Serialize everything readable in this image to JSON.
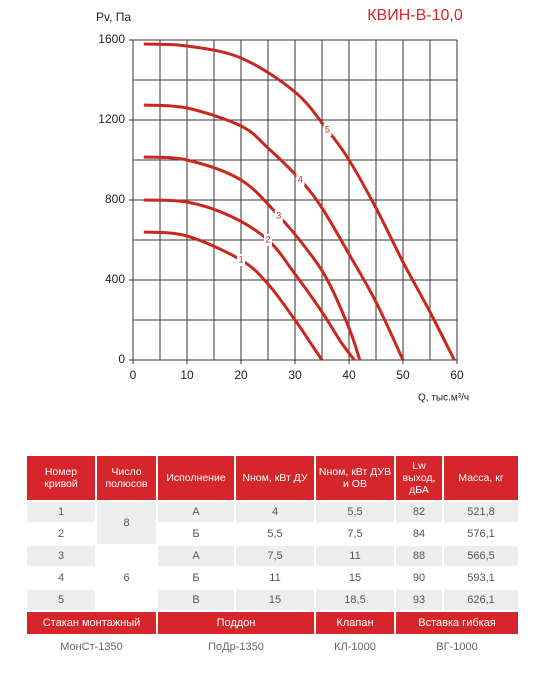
{
  "chart_data": {
    "type": "line",
    "title": "КВИН-В-10,0",
    "y_label": "Pv, Па",
    "x_label": "Q, тыс.м³/ч",
    "xlim": [
      0,
      60
    ],
    "xticks": [
      0,
      10,
      20,
      30,
      40,
      50,
      60
    ],
    "ylim": [
      0,
      1600
    ],
    "yticks": [
      0,
      400,
      800,
      1200,
      1600
    ],
    "grid": true,
    "x_grid_step": 5,
    "y_grid_step": 200,
    "series": [
      {
        "name": "1",
        "color": "#c8281e",
        "x": [
          2,
          10,
          20,
          25,
          30,
          33,
          35
        ],
        "values": [
          640,
          620,
          500,
          380,
          200,
          80,
          0
        ]
      },
      {
        "name": "2",
        "color": "#c8281e",
        "x": [
          2,
          10,
          18,
          25,
          30,
          35,
          38.5,
          41
        ],
        "values": [
          800,
          790,
          720,
          600,
          430,
          240,
          90,
          0
        ]
      },
      {
        "name": "3",
        "color": "#c8281e",
        "x": [
          2,
          10,
          20,
          27,
          32,
          36,
          40,
          42
        ],
        "values": [
          1015,
          1000,
          900,
          720,
          560,
          400,
          160,
          0
        ]
      },
      {
        "name": "4",
        "color": "#c8281e",
        "x": [
          2,
          10,
          20,
          25,
          31,
          35,
          40,
          45,
          50
        ],
        "values": [
          1275,
          1260,
          1170,
          1060,
          900,
          760,
          530,
          290,
          0
        ]
      },
      {
        "name": "5",
        "color": "#c8281e",
        "x": [
          2,
          10,
          20,
          30,
          36,
          40,
          45,
          50,
          55,
          59.5
        ],
        "values": [
          1580,
          1570,
          1510,
          1340,
          1150,
          1000,
          760,
          490,
          240,
          0
        ]
      }
    ]
  },
  "table": {
    "header": [
      "Номер кривой",
      "Число полюсов",
      "Исполнение",
      "Nном, кВт ДУ",
      "Nном, кВт ДУВ и ОВ",
      "Lw выход, дБА",
      "Масса, кг"
    ],
    "rows": [
      [
        "1",
        "8",
        "А",
        "4",
        "5,5",
        "82",
        "521,8"
      ],
      [
        "2",
        "Б",
        "5,5",
        "7,5",
        "84",
        "576,1"
      ],
      [
        "3",
        "6",
        "А",
        "7,5",
        "11",
        "88",
        "566,5"
      ],
      [
        "4",
        "Б",
        "11",
        "15",
        "90",
        "593,1"
      ],
      [
        "5",
        "В",
        "15",
        "18,5",
        "93",
        "626,1"
      ]
    ],
    "accessories_header": [
      "Стакан монтажный",
      "Поддон",
      "Клапан",
      "Вставка гибкая"
    ],
    "accessories": [
      "МонСт-1350",
      "ПоДр-1350",
      "КЛ-1000",
      "ВГ-1000"
    ]
  }
}
